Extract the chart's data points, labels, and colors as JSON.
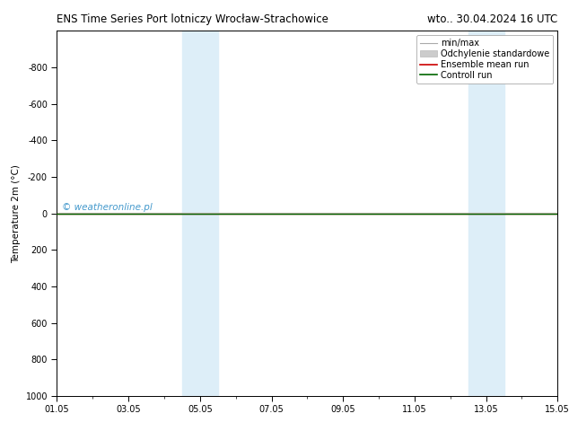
{
  "title": "ENS Time Series Port lotniczy Wrocław-Strachowice",
  "title_right": "wto.. 30.04.2024 16 UTC",
  "ylabel": "Temperature 2m (°C)",
  "ylim_top": -1000,
  "ylim_bottom": 1000,
  "yticks": [
    -800,
    -600,
    -400,
    -200,
    0,
    200,
    400,
    600,
    800,
    1000
  ],
  "xlim_start": 0,
  "xlim_end": 14,
  "xtick_positions": [
    0,
    2,
    4,
    6,
    8,
    10,
    12,
    14
  ],
  "xtick_labels": [
    "01.05",
    "03.05",
    "05.05",
    "07.05",
    "09.05",
    "11.05",
    "13.05",
    "15.05"
  ],
  "shaded_regions": [
    {
      "x_start": 3.5,
      "x_end": 4.5,
      "color": "#ddeef8"
    },
    {
      "x_start": 11.5,
      "x_end": 12.5,
      "color": "#ddeef8"
    }
  ],
  "control_run_color": "#006600",
  "ensemble_mean_color": "#cc0000",
  "minmax_color": "#aaaaaa",
  "std_color": "#cccccc",
  "watermark": "© weatheronline.pl",
  "watermark_color": "#4499cc",
  "background_color": "#ffffff",
  "legend_entries": [
    "min/max",
    "Odchylenie standardowe",
    "Ensemble mean run",
    "Controll run"
  ],
  "legend_colors": [
    "#aaaaaa",
    "#cccccc",
    "#cc0000",
    "#006600"
  ],
  "title_fontsize": 8.5,
  "axis_fontsize": 7.5,
  "tick_fontsize": 7,
  "legend_fontsize": 7
}
